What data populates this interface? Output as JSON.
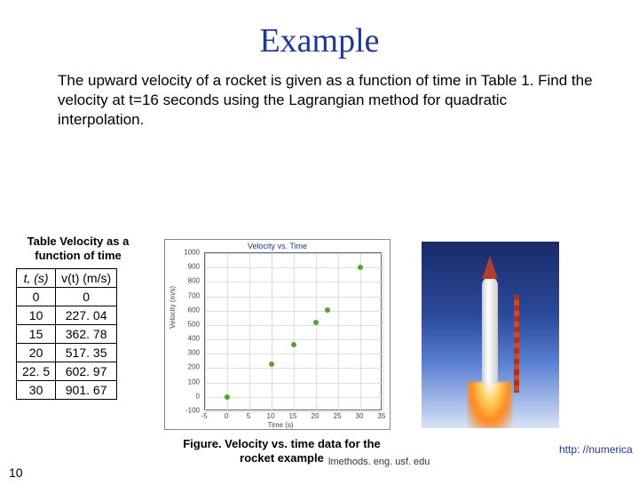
{
  "title": "Example",
  "body_text": "The upward velocity of a rocket is given as a function of time in Table 1. Find the velocity at t=16 seconds using the Lagrangian method for quadratic interpolation.",
  "table": {
    "caption": "Table  Velocity as a function of time",
    "header_t": "t, (s)",
    "header_v": "v(t) (m/s)",
    "rows": [
      {
        "t": "0",
        "v": "0"
      },
      {
        "t": "10",
        "v": "227. 04"
      },
      {
        "t": "15",
        "v": "362. 78"
      },
      {
        "t": "20",
        "v": "517. 35"
      },
      {
        "t": "22. 5",
        "v": "602. 97"
      },
      {
        "t": "30",
        "v": "901. 67"
      }
    ]
  },
  "chart": {
    "title": "Velocity vs. Time",
    "ylabel": "Velocity (m/s)",
    "xlabel": "Time (s)",
    "xlim": [
      -5,
      35
    ],
    "ylim": [
      -100,
      1000
    ],
    "xticks": [
      -5,
      0,
      5,
      10,
      15,
      20,
      25,
      30,
      35
    ],
    "yticks": [
      -100,
      0,
      100,
      200,
      300,
      400,
      500,
      600,
      700,
      800,
      900,
      1000
    ],
    "marker_color": "#5aa02c",
    "grid_color": "#dddddd",
    "points": [
      {
        "x": 0,
        "y": 0
      },
      {
        "x": 10,
        "y": 227.04
      },
      {
        "x": 15,
        "y": 362.78
      },
      {
        "x": 20,
        "y": 517.35
      },
      {
        "x": 22.5,
        "y": 602.97
      },
      {
        "x": 30,
        "y": 901.67
      }
    ]
  },
  "figure_caption": "Figure. Velocity vs. time data for the rocket example",
  "page_number": "10",
  "footer_domain": "lmethods. eng. usf. edu",
  "footer_link": "http: //numerica",
  "colors": {
    "title": "#1f3a93",
    "link": "#1f3a93"
  }
}
